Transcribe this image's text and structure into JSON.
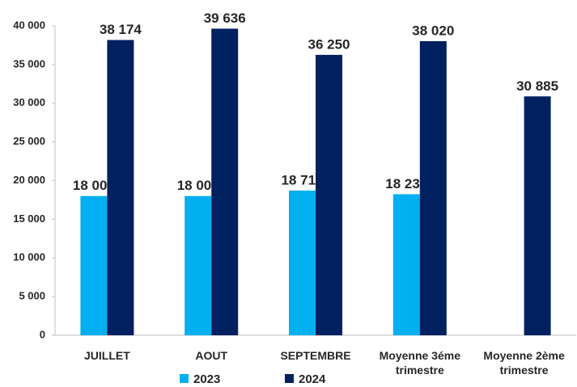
{
  "chart_data": {
    "type": "bar",
    "categories": [
      "JUILLET",
      "AOUT",
      "SEPTEMBRE",
      "Moyenne 3éme trimestre",
      "Moyenne 2ème trimestre"
    ],
    "series": [
      {
        "name": "2023",
        "color": "#00b0f0",
        "values": [
          18000,
          18000,
          18714,
          18238,
          null
        ],
        "value_labels": [
          "18 000",
          "18 000",
          "18 714",
          "18 238",
          null
        ]
      },
      {
        "name": "2024",
        "color": "#002060",
        "values": [
          38174,
          39636,
          36250,
          38020,
          30885
        ],
        "value_labels": [
          "38 174",
          "39 636",
          "36 250",
          "38 020",
          "30 885"
        ]
      }
    ],
    "ylim": [
      0,
      40000
    ],
    "yticks": [
      0,
      {
        "value": 5000,
        "label": "5 000"
      },
      {
        "value": 10000,
        "label": "10 000"
      },
      {
        "value": 15000,
        "label": "15 000"
      },
      {
        "value": 20000,
        "label": "20 000"
      },
      {
        "value": 25000,
        "label": "25 000"
      },
      {
        "value": 30000,
        "label": "30 000"
      },
      {
        "value": 35000,
        "label": "35 000"
      },
      {
        "value": 40000,
        "label": "40 000"
      }
    ],
    "grid": false,
    "legend": "bottom"
  }
}
